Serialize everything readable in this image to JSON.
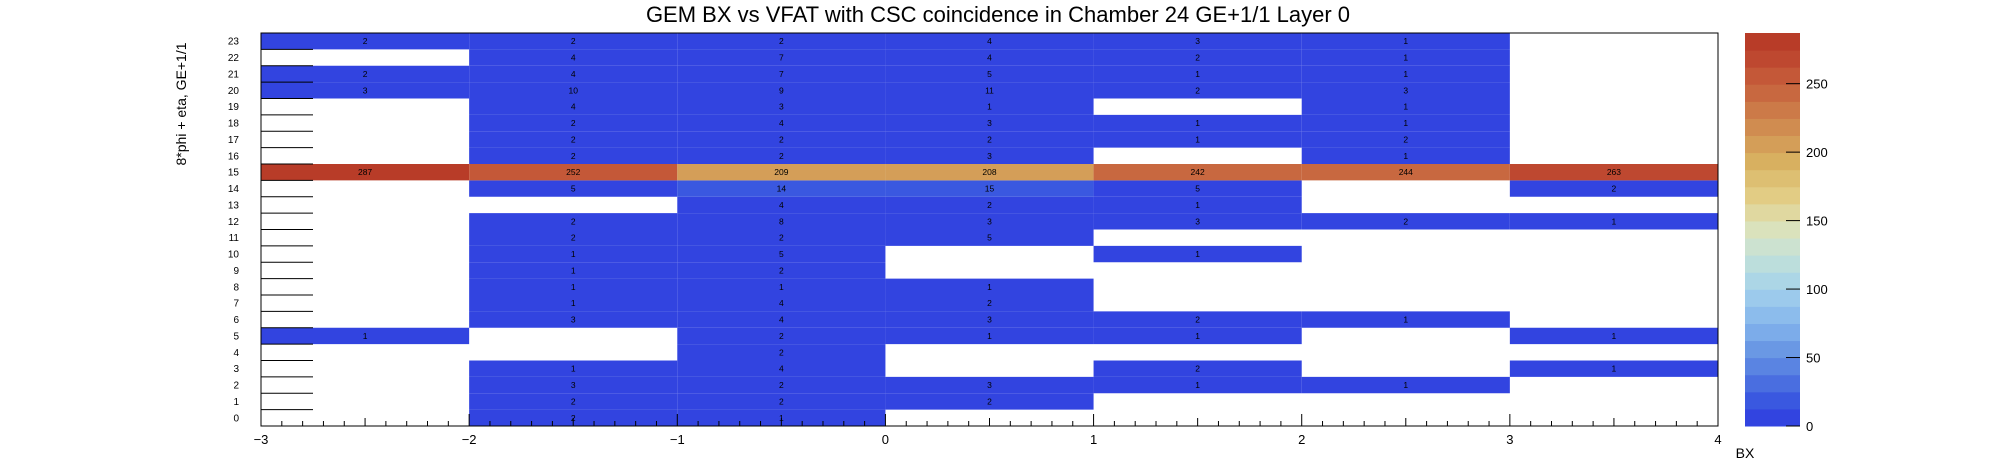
{
  "chart_data": {
    "type": "heatmap",
    "title": "GEM BX vs VFAT with CSC coincidence in Chamber 24 GE+1/1 Layer 0",
    "xlabel": "BX",
    "ylabel": "8*phi + eta, GE+1/1",
    "x_bins": [
      [
        -3,
        -2
      ],
      [
        -2,
        -1
      ],
      [
        -1,
        0
      ],
      [
        0,
        1
      ],
      [
        1,
        2
      ],
      [
        2,
        3
      ],
      [
        3,
        4
      ]
    ],
    "xlim": [
      -3,
      4
    ],
    "ylim": [
      0,
      24
    ],
    "x_ticks": [
      -3,
      -2,
      -1,
      0,
      1,
      2,
      3,
      4
    ],
    "x_tick_labels": [
      "−3",
      "−2",
      "−1",
      "0",
      "1",
      "2",
      "3",
      "4"
    ],
    "y_tick_labels": [
      "0",
      "1",
      "2",
      "3",
      "4",
      "5",
      "6",
      "7",
      "8",
      "9",
      "10",
      "11",
      "12",
      "13",
      "14",
      "15",
      "16",
      "17",
      "18",
      "19",
      "20",
      "21",
      "22",
      "23"
    ],
    "z_range": [
      0,
      287
    ],
    "z_ticks": [
      0,
      50,
      100,
      150,
      200,
      250
    ],
    "grid": false,
    "cells": [
      {
        "bx": -1.5,
        "y": 0,
        "v": 2
      },
      {
        "bx": -0.5,
        "y": 0,
        "v": 1
      },
      {
        "bx": -1.5,
        "y": 1,
        "v": 2
      },
      {
        "bx": -0.5,
        "y": 1,
        "v": 2
      },
      {
        "bx": 0.5,
        "y": 1,
        "v": 2
      },
      {
        "bx": -1.5,
        "y": 2,
        "v": 3
      },
      {
        "bx": -0.5,
        "y": 2,
        "v": 2
      },
      {
        "bx": 0.5,
        "y": 2,
        "v": 3
      },
      {
        "bx": 1.5,
        "y": 2,
        "v": 1
      },
      {
        "bx": 2.5,
        "y": 2,
        "v": 1
      },
      {
        "bx": -1.5,
        "y": 3,
        "v": 1
      },
      {
        "bx": -0.5,
        "y": 3,
        "v": 4
      },
      {
        "bx": 1.5,
        "y": 3,
        "v": 2
      },
      {
        "bx": 3.5,
        "y": 3,
        "v": 1
      },
      {
        "bx": -0.5,
        "y": 4,
        "v": 2
      },
      {
        "bx": -2.5,
        "y": 5,
        "v": 1
      },
      {
        "bx": -0.5,
        "y": 5,
        "v": 2
      },
      {
        "bx": 0.5,
        "y": 5,
        "v": 1
      },
      {
        "bx": 1.5,
        "y": 5,
        "v": 1
      },
      {
        "bx": 3.5,
        "y": 5,
        "v": 1
      },
      {
        "bx": -1.5,
        "y": 6,
        "v": 3
      },
      {
        "bx": -0.5,
        "y": 6,
        "v": 4
      },
      {
        "bx": 0.5,
        "y": 6,
        "v": 3
      },
      {
        "bx": 1.5,
        "y": 6,
        "v": 2
      },
      {
        "bx": 2.5,
        "y": 6,
        "v": 1
      },
      {
        "bx": -1.5,
        "y": 7,
        "v": 1
      },
      {
        "bx": -0.5,
        "y": 7,
        "v": 4
      },
      {
        "bx": 0.5,
        "y": 7,
        "v": 2
      },
      {
        "bx": -1.5,
        "y": 8,
        "v": 1
      },
      {
        "bx": -0.5,
        "y": 8,
        "v": 1
      },
      {
        "bx": 0.5,
        "y": 8,
        "v": 1
      },
      {
        "bx": -1.5,
        "y": 9,
        "v": 1
      },
      {
        "bx": -0.5,
        "y": 9,
        "v": 2
      },
      {
        "bx": -1.5,
        "y": 10,
        "v": 1
      },
      {
        "bx": -0.5,
        "y": 10,
        "v": 5
      },
      {
        "bx": 1.5,
        "y": 10,
        "v": 1
      },
      {
        "bx": -1.5,
        "y": 11,
        "v": 2
      },
      {
        "bx": -0.5,
        "y": 11,
        "v": 2
      },
      {
        "bx": 0.5,
        "y": 11,
        "v": 5
      },
      {
        "bx": -1.5,
        "y": 12,
        "v": 2
      },
      {
        "bx": -0.5,
        "y": 12,
        "v": 8
      },
      {
        "bx": 0.5,
        "y": 12,
        "v": 3
      },
      {
        "bx": 1.5,
        "y": 12,
        "v": 3
      },
      {
        "bx": 2.5,
        "y": 12,
        "v": 2
      },
      {
        "bx": 3.5,
        "y": 12,
        "v": 1
      },
      {
        "bx": -0.5,
        "y": 13,
        "v": 4
      },
      {
        "bx": 0.5,
        "y": 13,
        "v": 2
      },
      {
        "bx": 1.5,
        "y": 13,
        "v": 1
      },
      {
        "bx": -1.5,
        "y": 14,
        "v": 5
      },
      {
        "bx": -0.5,
        "y": 14,
        "v": 14
      },
      {
        "bx": 0.5,
        "y": 14,
        "v": 15
      },
      {
        "bx": 1.5,
        "y": 14,
        "v": 5
      },
      {
        "bx": 3.5,
        "y": 14,
        "v": 2
      },
      {
        "bx": -2.5,
        "y": 15,
        "v": 287
      },
      {
        "bx": -1.5,
        "y": 15,
        "v": 252
      },
      {
        "bx": -0.5,
        "y": 15,
        "v": 209
      },
      {
        "bx": 0.5,
        "y": 15,
        "v": 208
      },
      {
        "bx": 1.5,
        "y": 15,
        "v": 242
      },
      {
        "bx": 2.5,
        "y": 15,
        "v": 244
      },
      {
        "bx": 3.5,
        "y": 15,
        "v": 263
      },
      {
        "bx": -1.5,
        "y": 16,
        "v": 2
      },
      {
        "bx": -0.5,
        "y": 16,
        "v": 2
      },
      {
        "bx": 0.5,
        "y": 16,
        "v": 3
      },
      {
        "bx": 2.5,
        "y": 16,
        "v": 1
      },
      {
        "bx": -1.5,
        "y": 17,
        "v": 2
      },
      {
        "bx": -0.5,
        "y": 17,
        "v": 2
      },
      {
        "bx": 0.5,
        "y": 17,
        "v": 2
      },
      {
        "bx": 1.5,
        "y": 17,
        "v": 1
      },
      {
        "bx": 2.5,
        "y": 17,
        "v": 2
      },
      {
        "bx": -1.5,
        "y": 18,
        "v": 2
      },
      {
        "bx": -0.5,
        "y": 18,
        "v": 4
      },
      {
        "bx": 0.5,
        "y": 18,
        "v": 3
      },
      {
        "bx": 1.5,
        "y": 18,
        "v": 1
      },
      {
        "bx": 2.5,
        "y": 18,
        "v": 1
      },
      {
        "bx": -1.5,
        "y": 19,
        "v": 4
      },
      {
        "bx": -0.5,
        "y": 19,
        "v": 3
      },
      {
        "bx": 0.5,
        "y": 19,
        "v": 1
      },
      {
        "bx": 2.5,
        "y": 19,
        "v": 1
      },
      {
        "bx": -2.5,
        "y": 20,
        "v": 3
      },
      {
        "bx": -1.5,
        "y": 20,
        "v": 10
      },
      {
        "bx": -0.5,
        "y": 20,
        "v": 9
      },
      {
        "bx": 0.5,
        "y": 20,
        "v": 11
      },
      {
        "bx": 1.5,
        "y": 20,
        "v": 2
      },
      {
        "bx": 2.5,
        "y": 20,
        "v": 3
      },
      {
        "bx": -2.5,
        "y": 21,
        "v": 2
      },
      {
        "bx": -1.5,
        "y": 21,
        "v": 4
      },
      {
        "bx": -0.5,
        "y": 21,
        "v": 7
      },
      {
        "bx": 0.5,
        "y": 21,
        "v": 5
      },
      {
        "bx": 1.5,
        "y": 21,
        "v": 1
      },
      {
        "bx": 2.5,
        "y": 21,
        "v": 1
      },
      {
        "bx": -1.5,
        "y": 22,
        "v": 4
      },
      {
        "bx": -0.5,
        "y": 22,
        "v": 7
      },
      {
        "bx": 0.5,
        "y": 22,
        "v": 4
      },
      {
        "bx": 1.5,
        "y": 22,
        "v": 2
      },
      {
        "bx": 2.5,
        "y": 22,
        "v": 1
      },
      {
        "bx": -2.5,
        "y": 23,
        "v": 2
      },
      {
        "bx": -1.5,
        "y": 23,
        "v": 2
      },
      {
        "bx": -0.5,
        "y": 23,
        "v": 2
      },
      {
        "bx": 0.5,
        "y": 23,
        "v": 4
      },
      {
        "bx": 1.5,
        "y": 23,
        "v": 3
      },
      {
        "bx": 2.5,
        "y": 23,
        "v": 1
      }
    ],
    "palette": [
      "#3244e0",
      "#3a58e0",
      "#4a6ee0",
      "#5a84e2",
      "#6a98e4",
      "#7cacea",
      "#8cbcec",
      "#9ccaec",
      "#acd6e6",
      "#bcdedc",
      "#cce2d0",
      "#dae2bc",
      "#e0d8a0",
      "#e2cc84",
      "#ddbf72",
      "#d8b060",
      "#d49e58",
      "#d08c50",
      "#cc7a48",
      "#c86840",
      "#c45838",
      "#be4830",
      "#b83c28"
    ]
  }
}
